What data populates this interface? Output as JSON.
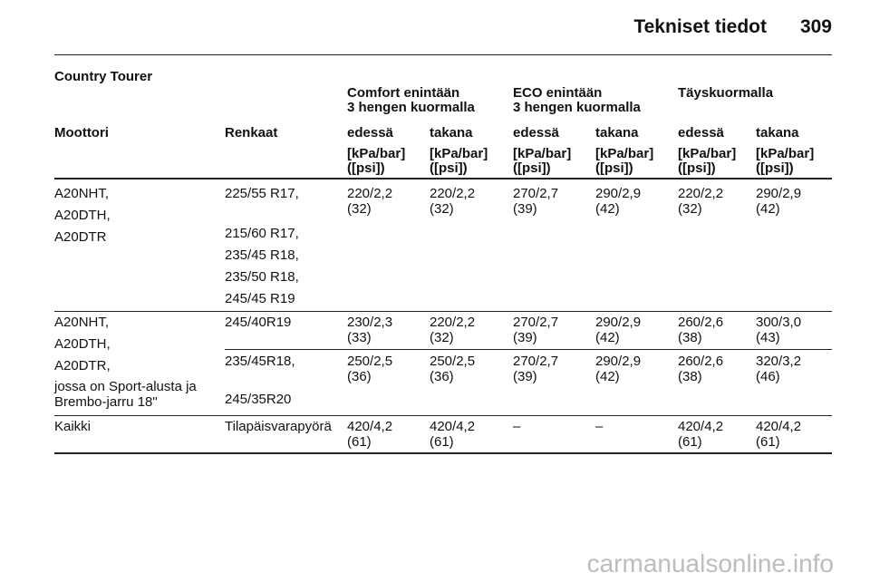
{
  "header": {
    "title": "Tekniset tiedot",
    "page": "309"
  },
  "section": "Country Tourer",
  "table": {
    "group_headers": [
      "Comfort enintään\n3 hengen kuormalla",
      "ECO enintään\n3 hengen kuormalla",
      "Täyskuormalla"
    ],
    "columns": [
      "Moottori",
      "Renkaat",
      "edessä",
      "takana",
      "edessä",
      "takana",
      "edessä",
      "takana"
    ],
    "units": [
      "[kPa/bar]\n([psi])",
      "[kPa/bar]\n([psi])",
      "[kPa/bar]\n([psi])",
      "[kPa/bar]\n([psi])",
      "[kPa/bar]\n([psi])",
      "[kPa/bar]\n([psi])"
    ],
    "rows": [
      {
        "engines": [
          "A20NHT,",
          "A20DTH,",
          "A20DTR"
        ],
        "subrows": [
          {
            "tyres": [
              "225/55 R17,",
              "215/60 R17,",
              "235/45 R18,",
              "235/50 R18,",
              "245/45 R19"
            ],
            "values": [
              "220/2,2\n(32)",
              "220/2,2\n(32)",
              "270/2,7\n(39)",
              "290/2,9\n(42)",
              "220/2,2\n(32)",
              "290/2,9\n(42)"
            ]
          }
        ]
      },
      {
        "engines": [
          "A20NHT,",
          "A20DTH,",
          "A20DTR,",
          "jossa on Sport-alusta ja\nBrembo-jarru 18\""
        ],
        "subrows": [
          {
            "tyres": [
              "245/40R19"
            ],
            "values": [
              "230/2,3\n(33)",
              "220/2,2\n(32)",
              "270/2,7\n(39)",
              "290/2,9\n(42)",
              "260/2,6\n(38)",
              "300/3,0\n(43)"
            ]
          },
          {
            "tyres": [
              "235/45R18,",
              "245/35R20"
            ],
            "values": [
              "250/2,5\n(36)",
              "250/2,5\n(36)",
              "270/2,7\n(39)",
              "290/2,9\n(42)",
              "260/2,6\n(38)",
              "320/3,2\n(46)"
            ]
          }
        ]
      },
      {
        "engines": [
          "Kaikki"
        ],
        "subrows": [
          {
            "tyres": [
              "Tilapäisvarapyörä"
            ],
            "values": [
              "420/4,2\n(61)",
              "420/4,2\n(61)",
              "–",
              "–",
              "420/4,2\n(61)",
              "420/4,2\n(61)"
            ]
          }
        ]
      }
    ]
  },
  "watermark": "carmanualsonline.info"
}
